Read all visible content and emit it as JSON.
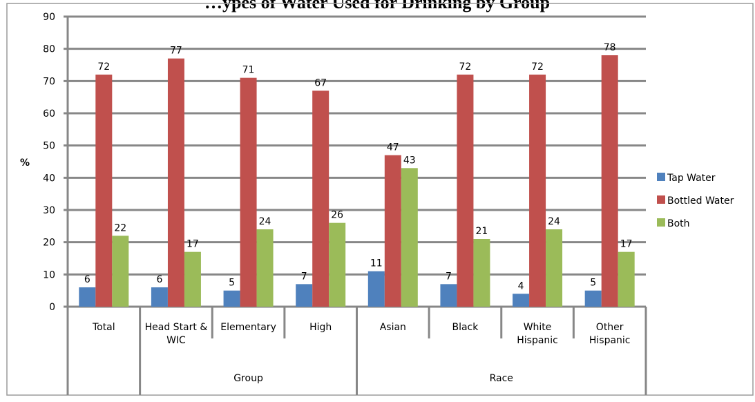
{
  "chart_data": {
    "type": "bar",
    "title": "…ypes of Water Used for Drinking by Group",
    "ylabel": "%",
    "ylim": [
      0,
      90
    ],
    "yticks": [
      0,
      10,
      20,
      30,
      40,
      50,
      60,
      70,
      80,
      90
    ],
    "grid": true,
    "legend_position": "right",
    "categories": [
      {
        "lines": [
          "Total"
        ],
        "group": ""
      },
      {
        "lines": [
          "Head Start &",
          "WIC"
        ],
        "group": "Group"
      },
      {
        "lines": [
          "Elementary"
        ],
        "group": "Group"
      },
      {
        "lines": [
          "High"
        ],
        "group": "Group"
      },
      {
        "lines": [
          "Asian"
        ],
        "group": "Race"
      },
      {
        "lines": [
          "Black"
        ],
        "group": "Race"
      },
      {
        "lines": [
          "White",
          "Hispanic"
        ],
        "group": "Race"
      },
      {
        "lines": [
          "Other",
          "Hispanic"
        ],
        "group": "Race"
      }
    ],
    "groups": [
      {
        "name": "Group",
        "from": 1,
        "to": 3
      },
      {
        "name": "Race",
        "from": 4,
        "to": 7
      }
    ],
    "series": [
      {
        "name": "Tap Water",
        "color": "#4f81bd",
        "values": [
          6,
          6,
          5,
          7,
          11,
          7,
          4,
          5
        ],
        "labels": [
          "6",
          "6",
          "5",
          "7",
          "11",
          "7",
          "4",
          "5"
        ]
      },
      {
        "name": "Bottled Water",
        "color": "#c0504d",
        "values": [
          72,
          77,
          71,
          67,
          47,
          72,
          72,
          78
        ],
        "labels": [
          "72",
          "77",
          "71",
          "67",
          "47",
          "72",
          "72",
          "78"
        ]
      },
      {
        "name": "Both",
        "color": "#9bbb59",
        "values": [
          22,
          17,
          24,
          26,
          43,
          21,
          24,
          17
        ],
        "labels": [
          "22",
          "17",
          "24",
          "26",
          "43",
          "21",
          "24",
          "17"
        ]
      }
    ]
  }
}
